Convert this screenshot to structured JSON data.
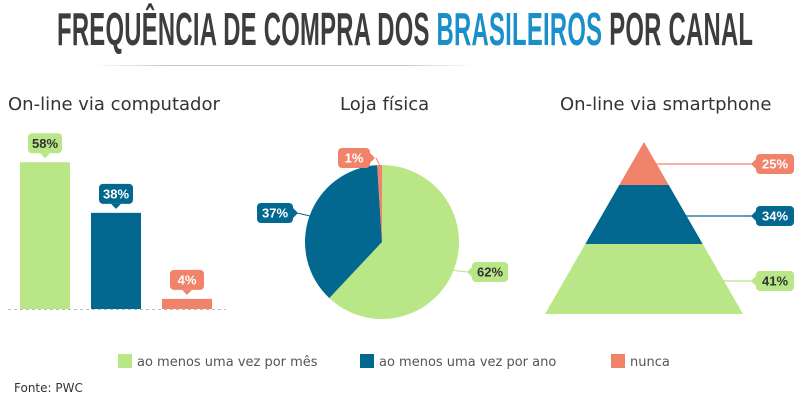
{
  "title": {
    "part1": "FREQUÊNCIA DE COMPRA DOS ",
    "highlight": "BRASILEIROS",
    "part2": " POR CANAL"
  },
  "colors": {
    "green": "#b9e686",
    "blue": "#036890",
    "orange": "#f2836b",
    "title": "#3d3d3d",
    "highlight": "#1a8fca"
  },
  "chart_data": [
    {
      "type": "bar",
      "title": "On-line via computador",
      "categories": [
        "ao menos uma vez por mês",
        "ao menos uma vez por ano",
        "nunca"
      ],
      "values": [
        58,
        38,
        4
      ],
      "labels": [
        "58%",
        "38%",
        "4%"
      ]
    },
    {
      "type": "pie",
      "title": "Loja física",
      "categories": [
        "ao menos uma vez por mês",
        "ao menos uma vez por ano",
        "nunca"
      ],
      "values": [
        62,
        37,
        1
      ],
      "labels": [
        "62%",
        "37%",
        "1%"
      ]
    },
    {
      "type": "pyramid",
      "title": "On-line via smartphone",
      "categories": [
        "ao menos uma vez por mês",
        "ao menos uma vez por ano",
        "nunca"
      ],
      "values": [
        41,
        34,
        25
      ],
      "labels": [
        "41%",
        "34%",
        "25%"
      ]
    }
  ],
  "legend": [
    "ao menos uma vez por mês",
    "ao menos uma vez por ano",
    "nunca"
  ],
  "source": "Fonte: PWC"
}
